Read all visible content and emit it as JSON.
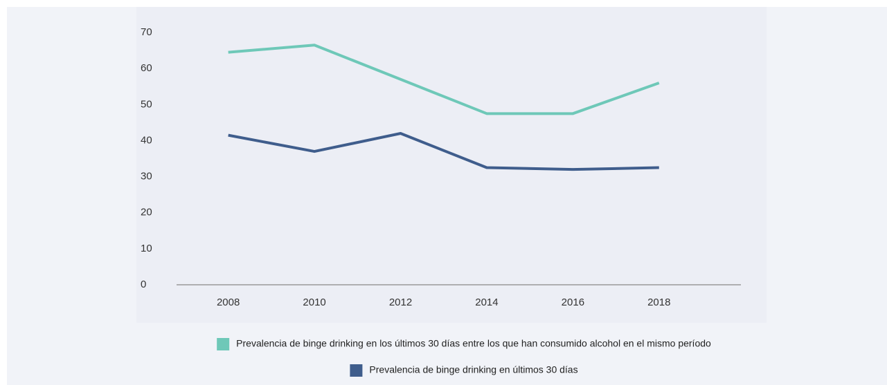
{
  "chart_data": {
    "type": "line",
    "x": [
      2008,
      2010,
      2012,
      2014,
      2016,
      2018
    ],
    "xlim": [
      2006.8,
      2019.9
    ],
    "xticks": [
      2008,
      2010,
      2012,
      2014,
      2016,
      2018
    ],
    "ylim": [
      0,
      70
    ],
    "yticks": [
      0,
      10,
      20,
      30,
      40,
      50,
      60,
      70
    ],
    "grid": false,
    "legend": "bottom",
    "series": [
      {
        "name": "Prevalencia de binge drinking en los últimos 30 días entre los que han consumido alcohol en el mismo período",
        "color": "#6ec8b8",
        "values": [
          64.5,
          66.5,
          57,
          47.5,
          47.5,
          56
        ]
      },
      {
        "name": "Prevalencia de binge drinking en últimos 30 días",
        "color": "#3f5d8c",
        "values": [
          41.5,
          37,
          42,
          32.5,
          32,
          32.5
        ]
      }
    ]
  }
}
